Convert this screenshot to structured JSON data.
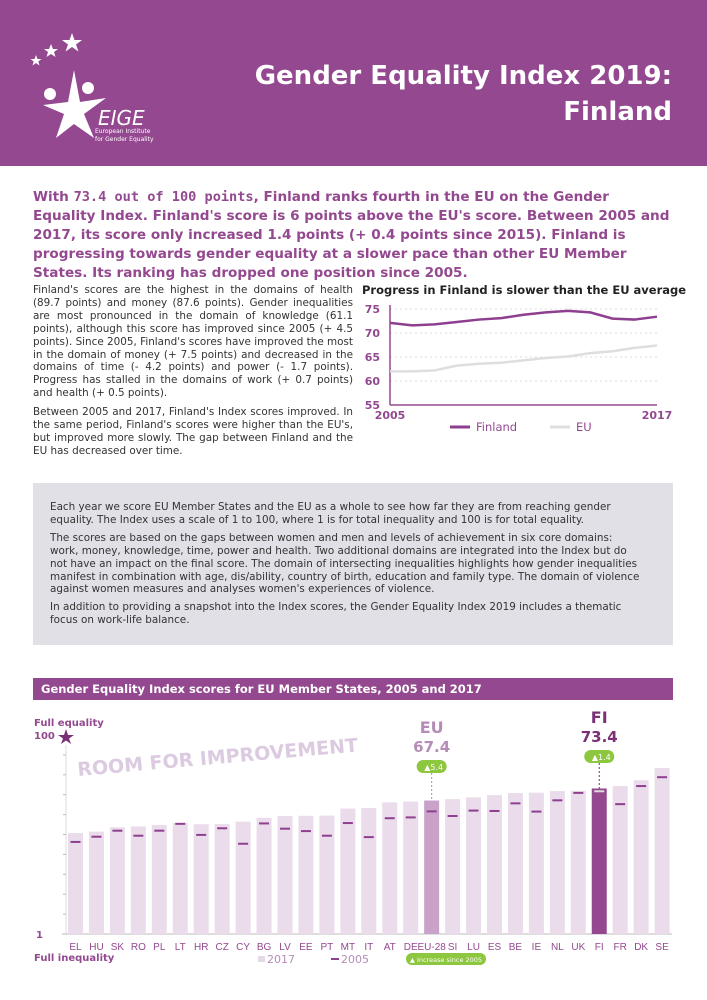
{
  "header": {
    "title_line1": "Gender Equality Index 2019:",
    "title_line2": "Finland",
    "logo_text": "EIGE",
    "logo_sub1": "European Institute",
    "logo_sub2": "for Gender Equality"
  },
  "intro": {
    "pre": "With ",
    "highlight": "73.4 out of 100 points",
    "post": ", Finland ranks fourth in the EU on the Gender Equality Index. Finland's score is 6 points above the EU's score. Between 2005 and 2017, its score only increased 1.4 points (+ 0.4 points since 2015). Finland is progressing towards gender equality at a slower pace than other EU Member States. Its ranking has dropped one position since 2005."
  },
  "body": {
    "p1": "Finland's scores are the highest in the domains of health (89.7 points) and money (87.6 points). Gender inequalities are most pronounced in the domain of knowledge (61.1 points), although this score has improved since 2005 (+ 4.5 points). Since 2005, Finland's scores have improved the most in the domain of money (+ 7.5 points) and decreased in the domains of time (- 4.2 points) and power (- 1.7 points). Progress has stalled in the domains of work (+ 0.7 points) and health (+ 0.5 points).",
    "p2": "Between 2005 and 2017, Finland's Index scores improved. In the same period, Finland's scores were higher than the EU's, but improved more slowly. The gap between Finland and the EU has decreased over time."
  },
  "info_box": {
    "p1": "Each year we score EU Member States and the EU as a whole to see how far they are from reaching gender equality. The Index uses a scale of 1 to 100, where 1 is for total inequality and 100 is for total equality.",
    "p2": "The scores are based on the gaps between women and men and levels of achievement in six core domains: work, money, knowledge, time, power and health. Two additional domains are integrated into the Index but do not have an impact on the final score. The domain of intersecting inequalities highlights how gender inequalities manifest in combination with age, dis/ability, country of birth, education and family type. The domain of violence against women measures and analyses women's experiences of violence.",
    "p3": "In addition to providing a snapshot into the Index scores, the Gender Equality Index 2019 includes a thematic focus on work-life balance."
  },
  "colors": {
    "brand": "#93488f",
    "eu_bar": "#c9a1c9",
    "bar": "#eadcea",
    "green": "#8dc63f",
    "eu_line": "#e0dde0"
  },
  "chart_data": [
    {
      "type": "line",
      "title": "Progress in Finland is slower than the EU average",
      "x_tick_labels": [
        "2005",
        "2017"
      ],
      "x": [
        2005,
        2006,
        2007,
        2008,
        2009,
        2010,
        2011,
        2012,
        2013,
        2014,
        2015,
        2016,
        2017
      ],
      "ylim": [
        55,
        75
      ],
      "yticks": [
        55,
        60,
        65,
        70,
        75
      ],
      "grid": true,
      "legend": "bottom",
      "series": [
        {
          "name": "Finland",
          "color": "#8e3f8f",
          "values": [
            72.1,
            71.6,
            71.8,
            72.3,
            72.8,
            73.1,
            73.8,
            74.3,
            74.6,
            74.3,
            73.0,
            72.8,
            73.4
          ]
        },
        {
          "name": "EU",
          "color": "#e0dde0",
          "values": [
            62.0,
            62.0,
            62.2,
            63.2,
            63.6,
            63.8,
            64.3,
            64.8,
            65.1,
            65.8,
            66.2,
            66.9,
            67.4
          ]
        }
      ]
    },
    {
      "type": "bar",
      "title": "Gender Equality Index scores for EU Member States, 2005 and 2017",
      "ylim": [
        1,
        100
      ],
      "top_label": "Full equality",
      "bottom_label": "Full inequality",
      "y_tick_top": "100",
      "y_tick_bottom": "1",
      "watermark": "ROOM FOR IMPROVEMENT",
      "categories": [
        "EL",
        "HU",
        "SK",
        "RO",
        "PL",
        "LT",
        "HR",
        "CZ",
        "CY",
        "BG",
        "LV",
        "EE",
        "PT",
        "MT",
        "IT",
        "AT",
        "DE",
        "EU-28",
        "SI",
        "LU",
        "ES",
        "BE",
        "IE",
        "NL",
        "UK",
        "FI",
        "FR",
        "DK",
        "SE"
      ],
      "series": [
        {
          "name": "2017",
          "values": [
            51.2,
            51.9,
            54.1,
            54.5,
            55.2,
            56.3,
            55.6,
            55.7,
            56.9,
            58.8,
            59.7,
            59.8,
            59.9,
            63.4,
            63.7,
            66.5,
            66.9,
            67.4,
            68.1,
            69.0,
            70.1,
            71.1,
            71.3,
            72.1,
            72.2,
            73.4,
            74.6,
            77.5,
            83.6
          ]
        },
        {
          "name": "2005",
          "values": [
            46.8,
            49.4,
            52.4,
            49.9,
            52.4,
            55.8,
            50.3,
            53.6,
            45.9,
            56.0,
            53.4,
            52.2,
            49.9,
            56.2,
            49.2,
            58.6,
            59.0,
            62.0,
            59.7,
            62.4,
            62.2,
            66.0,
            61.9,
            67.5,
            71.2,
            72.0,
            65.6,
            74.6,
            79.0
          ]
        }
      ],
      "callouts": [
        {
          "label": "EU",
          "value": "67.4",
          "change": "5.4",
          "category": "EU-28"
        },
        {
          "label": "FI",
          "value": "73.4",
          "change": "1.4",
          "category": "FI"
        }
      ],
      "legend": {
        "l2017": "2017",
        "l2005": "2005",
        "increase": "Increase since 2005"
      }
    }
  ]
}
